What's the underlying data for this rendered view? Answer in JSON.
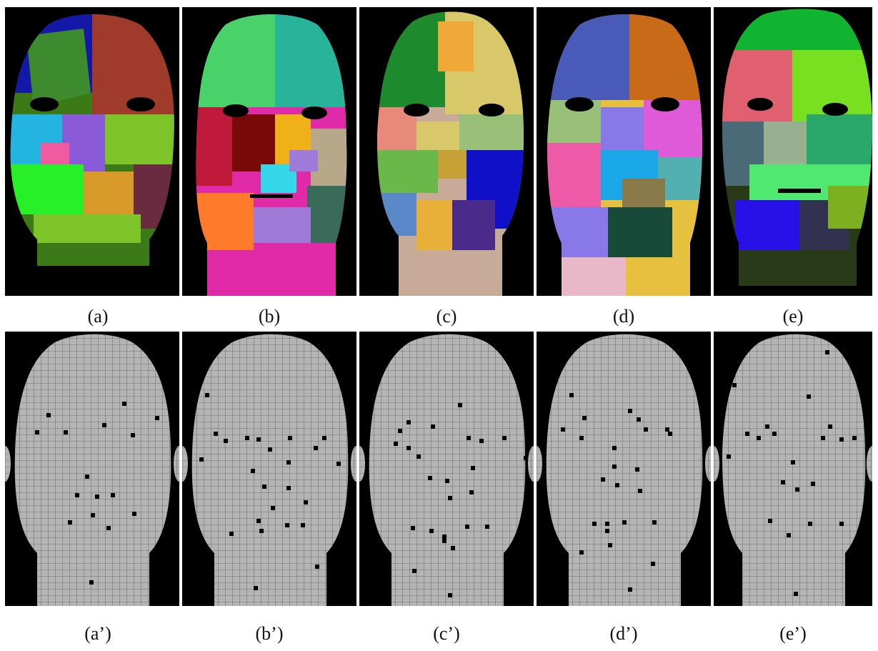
{
  "top_row": [
    {
      "id": "a",
      "caption": "(a)",
      "style": "segmented-colored-head",
      "colors": [
        "#1418a8",
        "#a03a2a",
        "#3e8a2e",
        "#8a5ad8",
        "#f05aa0",
        "#28f028",
        "#d89a28",
        "#6a2a40",
        "#7cc42a",
        "#24b4e0",
        "#3c7a18"
      ]
    },
    {
      "id": "b",
      "caption": "(b)",
      "style": "segmented-colored-head",
      "colors": [
        "#4ad26a",
        "#28b49a",
        "#c01a3a",
        "#7a0a0a",
        "#ff7a2a",
        "#f0b018",
        "#a07ad8",
        "#34d8e8",
        "#b8a88a",
        "#3a6a5a",
        "#e02aa8"
      ]
    },
    {
      "id": "c",
      "caption": "(c)",
      "style": "segmented-colored-head",
      "colors": [
        "#1e8a2e",
        "#f0a838",
        "#d8c86a",
        "#e88a7a",
        "#5a88c8",
        "#6ab84a",
        "#c8a038",
        "#1010c8",
        "#e8b038",
        "#4a2a8a",
        "#c8aa98"
      ]
    },
    {
      "id": "d",
      "caption": "(d)",
      "style": "segmented-colored-head",
      "colors": [
        "#4a5ab8",
        "#c86a18",
        "#98c078",
        "#8878e8",
        "#e05ad8",
        "#ec5aa8",
        "#54b0b0",
        "#8a7a4a",
        "#1aa8e8",
        "#184a3a",
        "#e8c040"
      ]
    },
    {
      "id": "e",
      "caption": "(e)",
      "style": "segmented-colored-head",
      "colors": [
        "#10b430",
        "#e06070",
        "#78e020",
        "#4a6a78",
        "#98b090",
        "#9a2a3a",
        "#2aa86a",
        "#50e870",
        "#2810e8",
        "#323250",
        "#283a18"
      ]
    }
  ],
  "bottom_row": [
    {
      "id": "a2",
      "caption": "(a’)",
      "style": "wireframe-head-with-landmarks",
      "mesh_color": "#b4b4b4",
      "marker_color": "#000000",
      "marker_count": 26
    },
    {
      "id": "b2",
      "caption": "(b’)",
      "style": "wireframe-head-with-landmarks",
      "mesh_color": "#b4b4b4",
      "marker_color": "#000000",
      "marker_count": 26
    },
    {
      "id": "c2",
      "caption": "(c’)",
      "style": "wireframe-head-with-landmarks",
      "mesh_color": "#b4b4b4",
      "marker_color": "#000000",
      "marker_count": 28
    },
    {
      "id": "d2",
      "caption": "(d’)",
      "style": "wireframe-head-with-landmarks",
      "mesh_color": "#b4b4b4",
      "marker_color": "#000000",
      "marker_count": 26
    },
    {
      "id": "e2",
      "caption": "(e’)",
      "style": "wireframe-head-with-landmarks",
      "mesh_color": "#b4b4b4",
      "marker_color": "#000000",
      "marker_count": 26
    }
  ]
}
